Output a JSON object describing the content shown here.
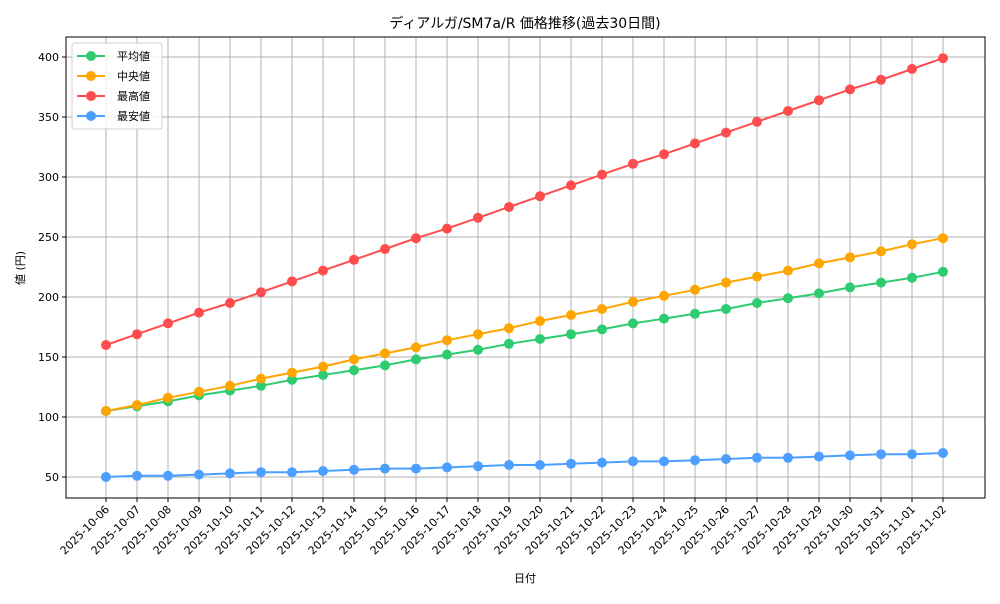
{
  "chart_data": {
    "type": "line",
    "title": "ディアルガ/SM7a/R 価格推移(過去30日間)",
    "xlabel": "日付",
    "ylabel": "値 (円)",
    "ylim": [
      33,
      417
    ],
    "yticks": [
      50,
      100,
      150,
      200,
      250,
      300,
      350,
      400
    ],
    "grid": true,
    "legend_position": "upper left",
    "categories": [
      "2025-10-06",
      "2025-10-07",
      "2025-10-08",
      "2025-10-09",
      "2025-10-10",
      "2025-10-11",
      "2025-10-12",
      "2025-10-13",
      "2025-10-14",
      "2025-10-15",
      "2025-10-16",
      "2025-10-17",
      "2025-10-18",
      "2025-10-19",
      "2025-10-20",
      "2025-10-21",
      "2025-10-22",
      "2025-10-23",
      "2025-10-24",
      "2025-10-25",
      "2025-10-26",
      "2025-10-27",
      "2025-10-28",
      "2025-10-29",
      "2025-10-30",
      "2025-10-31",
      "2025-11-01",
      "2025-11-02"
    ],
    "series": [
      {
        "name": "平均値",
        "color": "#2ecc71",
        "values": [
          105,
          109,
          113,
          118,
          122,
          126,
          131,
          135,
          139,
          143,
          148,
          152,
          156,
          161,
          165,
          169,
          173,
          178,
          182,
          186,
          190,
          195,
          199,
          203,
          208,
          212,
          216,
          221
        ]
      },
      {
        "name": "中央値",
        "color": "#ffa500",
        "values": [
          105,
          110,
          116,
          121,
          126,
          132,
          137,
          142,
          148,
          153,
          158,
          164,
          169,
          174,
          180,
          185,
          190,
          196,
          201,
          206,
          212,
          217,
          222,
          228,
          233,
          238,
          244,
          249
        ]
      },
      {
        "name": "最高値",
        "color": "#ff4d4d",
        "values": [
          160,
          169,
          178,
          187,
          195,
          204,
          213,
          222,
          231,
          240,
          249,
          257,
          266,
          275,
          284,
          293,
          302,
          311,
          319,
          328,
          337,
          346,
          355,
          364,
          373,
          381,
          390,
          399
        ]
      },
      {
        "name": "最安値",
        "color": "#4d9fff",
        "values": [
          50,
          51,
          51,
          52,
          53,
          54,
          54,
          55,
          56,
          57,
          57,
          58,
          59,
          60,
          60,
          61,
          62,
          63,
          63,
          64,
          65,
          66,
          66,
          67,
          68,
          69,
          69,
          70
        ]
      }
    ]
  }
}
